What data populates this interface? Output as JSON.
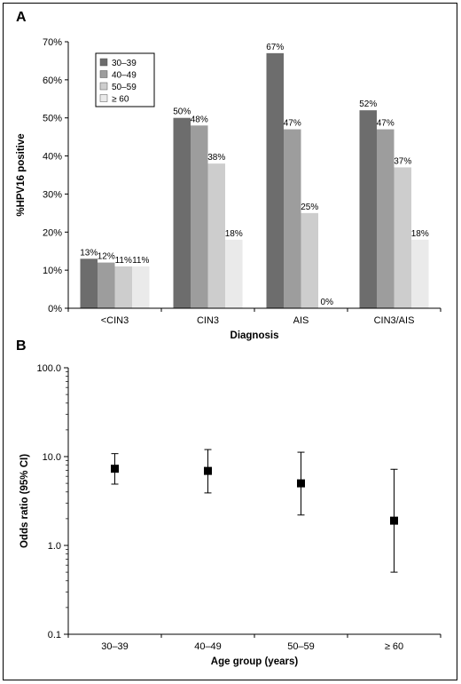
{
  "panels": {
    "a": {
      "letter": "A"
    },
    "b": {
      "letter": "B"
    }
  },
  "chart_data": [
    {
      "type": "bar",
      "categories": [
        "<CIN3",
        "CIN3",
        "AIS",
        "CIN3/AIS"
      ],
      "series": [
        {
          "name": "30–39",
          "color": "#6d6d6d",
          "values": [
            13,
            50,
            67,
            52
          ],
          "labels": [
            "13%",
            "50%",
            "67%",
            "52%"
          ]
        },
        {
          "name": "40–49",
          "color": "#9d9d9d",
          "values": [
            12,
            48,
            47,
            47
          ],
          "labels": [
            "12%",
            "48%",
            "47%",
            "47%"
          ]
        },
        {
          "name": "50–59",
          "color": "#cdcdcd",
          "values": [
            11,
            38,
            25,
            37
          ],
          "labels": [
            "11%",
            "38%",
            "25%",
            "37%"
          ]
        },
        {
          "name": "≥ 60",
          "color": "#eaeaea",
          "values": [
            11,
            18,
            0,
            18
          ],
          "labels": [
            "11%",
            "18%",
            "0%",
            "18%"
          ]
        }
      ],
      "xlabel": "Diagnosis",
      "ylabel": "%HPV16 positive",
      "ylim": [
        0,
        70
      ],
      "yticks": [
        0,
        10,
        20,
        30,
        40,
        50,
        60,
        70
      ],
      "ytick_labels": [
        "0%",
        "10%",
        "20%",
        "30%",
        "40%",
        "50%",
        "60%",
        "70%"
      ],
      "legend_position": "top-left",
      "grid": false
    },
    {
      "type": "scatter",
      "categories": [
        "30–39",
        "40–49",
        "50–59",
        "≥ 60"
      ],
      "points": [
        {
          "estimate": 7.3,
          "lower": 4.9,
          "upper": 10.8
        },
        {
          "estimate": 6.9,
          "lower": 3.9,
          "upper": 12.0
        },
        {
          "estimate": 5.0,
          "lower": 2.2,
          "upper": 11.2
        },
        {
          "estimate": 1.9,
          "lower": 0.5,
          "upper": 7.2
        }
      ],
      "xlabel": "Age group (years)",
      "ylabel": "Odds ratio (95% CI)",
      "yscale": "log",
      "ylim": [
        0.1,
        100
      ],
      "yticks": [
        0.1,
        1,
        10,
        100
      ],
      "ytick_labels": [
        "0.1",
        "1.0",
        "10.0",
        "100.0"
      ],
      "grid": false
    }
  ]
}
